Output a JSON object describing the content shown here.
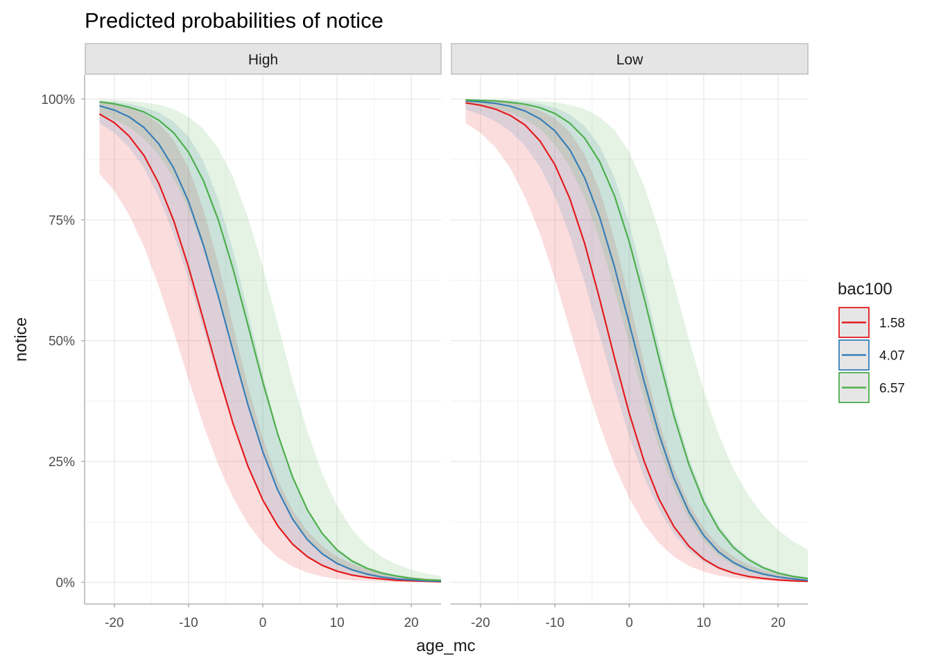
{
  "chart_data": {
    "type": "line",
    "title": "Predicted probabilities of notice",
    "xlabel": "age_mc",
    "ylabel": "notice",
    "xlim": [
      -24,
      24
    ],
    "ylim": [
      -0.045,
      1.05
    ],
    "x_ticks": [
      -20,
      -10,
      0,
      10,
      20
    ],
    "x_tick_labels": [
      "-20",
      "-10",
      "0",
      "10",
      "20"
    ],
    "y_ticks": [
      0,
      0.25,
      0.5,
      0.75,
      1
    ],
    "y_tick_labels": [
      "0%",
      "25%",
      "50%",
      "75%",
      "100%"
    ],
    "grid": true,
    "legend": {
      "title": "bac100",
      "position": "right",
      "entries": [
        "1.58",
        "4.07",
        "6.57"
      ]
    },
    "colors": {
      "1.58": "#e41a1c",
      "4.07": "#377eb8",
      "6.57": "#4daf4a"
    },
    "panels": [
      {
        "label": "High",
        "series": [
          {
            "name": "1.58",
            "x": [
              -22,
              -20,
              -18,
              -16,
              -14,
              -12,
              -10,
              -8,
              -6,
              -4,
              -2,
              0,
              2,
              4,
              6,
              8,
              10,
              12,
              14,
              16,
              18,
              20,
              22,
              24
            ],
            "y": [
              0.969,
              0.951,
              0.923,
              0.883,
              0.825,
              0.748,
              0.652,
              0.543,
              0.432,
              0.328,
              0.24,
              0.17,
              0.117,
              0.079,
              0.053,
              0.035,
              0.023,
              0.015,
              0.01,
              0.007,
              0.004,
              0.003,
              0.002,
              0.001
            ],
            "lower": [
              0.845,
              0.81,
              0.76,
              0.695,
              0.612,
              0.518,
              0.42,
              0.325,
              0.243,
              0.175,
              0.121,
              0.081,
              0.052,
              0.033,
              0.02,
              0.012,
              0.007,
              0.004,
              0.003,
              0.002,
              0.001,
              0.001,
              0.0005,
              0.0003
            ],
            "upper": [
              0.993,
              0.989,
              0.982,
              0.97,
              0.95,
              0.915,
              0.858,
              0.772,
              0.66,
              0.53,
              0.405,
              0.298,
              0.212,
              0.15,
              0.106,
              0.075,
              0.053,
              0.038,
              0.027,
              0.02,
              0.015,
              0.011,
              0.008,
              0.006
            ]
          },
          {
            "name": "4.07",
            "x": [
              -22,
              -20,
              -18,
              -16,
              -14,
              -12,
              -10,
              -8,
              -6,
              -4,
              -2,
              0,
              2,
              4,
              6,
              8,
              10,
              12,
              14,
              16,
              18,
              20,
              22,
              24
            ],
            "y": [
              0.986,
              0.977,
              0.963,
              0.941,
              0.907,
              0.857,
              0.788,
              0.698,
              0.592,
              0.478,
              0.367,
              0.27,
              0.191,
              0.131,
              0.088,
              0.059,
              0.039,
              0.026,
              0.017,
              0.011,
              0.007,
              0.005,
              0.003,
              0.002
            ],
            "lower": [
              0.95,
              0.93,
              0.9,
              0.857,
              0.797,
              0.72,
              0.628,
              0.524,
              0.421,
              0.326,
              0.242,
              0.174,
              0.12,
              0.081,
              0.053,
              0.034,
              0.022,
              0.014,
              0.009,
              0.006,
              0.004,
              0.002,
              0.0015,
              0.001
            ],
            "upper": [
              0.996,
              0.994,
              0.99,
              0.983,
              0.972,
              0.953,
              0.922,
              0.871,
              0.792,
              0.686,
              0.559,
              0.429,
              0.312,
              0.218,
              0.15,
              0.102,
              0.069,
              0.047,
              0.032,
              0.022,
              0.015,
              0.01,
              0.007,
              0.005
            ]
          },
          {
            "name": "6.57",
            "x": [
              -22,
              -20,
              -18,
              -16,
              -14,
              -12,
              -10,
              -8,
              -6,
              -4,
              -2,
              0,
              2,
              4,
              6,
              8,
              10,
              12,
              14,
              16,
              18,
              20,
              22,
              24
            ],
            "y": [
              0.994,
              0.99,
              0.983,
              0.973,
              0.956,
              0.93,
              0.89,
              0.831,
              0.75,
              0.648,
              0.532,
              0.414,
              0.307,
              0.218,
              0.15,
              0.101,
              0.067,
              0.044,
              0.029,
              0.019,
              0.013,
              0.008,
              0.005,
              0.004
            ],
            "lower": [
              0.97,
              0.958,
              0.942,
              0.918,
              0.884,
              0.836,
              0.772,
              0.689,
              0.589,
              0.48,
              0.373,
              0.276,
              0.195,
              0.133,
              0.088,
              0.057,
              0.036,
              0.023,
              0.014,
              0.009,
              0.006,
              0.004,
              0.002,
              0.0015
            ],
            "upper": [
              0.999,
              0.998,
              0.996,
              0.993,
              0.988,
              0.979,
              0.963,
              0.938,
              0.898,
              0.838,
              0.755,
              0.652,
              0.535,
              0.418,
              0.312,
              0.225,
              0.158,
              0.11,
              0.076,
              0.053,
              0.037,
              0.026,
              0.018,
              0.013
            ]
          }
        ]
      },
      {
        "label": "Low",
        "series": [
          {
            "name": "1.58",
            "x": [
              -22,
              -20,
              -18,
              -16,
              -14,
              -12,
              -10,
              -8,
              -6,
              -4,
              -2,
              0,
              2,
              4,
              6,
              8,
              10,
              12,
              14,
              16,
              18,
              20,
              22,
              24
            ],
            "y": [
              0.992,
              0.987,
              0.979,
              0.966,
              0.946,
              0.913,
              0.864,
              0.794,
              0.701,
              0.587,
              0.465,
              0.349,
              0.25,
              0.172,
              0.115,
              0.075,
              0.048,
              0.03,
              0.019,
              0.012,
              0.008,
              0.005,
              0.003,
              0.002
            ],
            "lower": [
              0.95,
              0.93,
              0.9,
              0.857,
              0.797,
              0.721,
              0.628,
              0.524,
              0.421,
              0.326,
              0.242,
              0.174,
              0.12,
              0.081,
              0.053,
              0.034,
              0.022,
              0.014,
              0.009,
              0.006,
              0.004,
              0.002,
              0.0015,
              0.001
            ],
            "upper": [
              0.998,
              0.997,
              0.995,
              0.992,
              0.986,
              0.976,
              0.96,
              0.932,
              0.885,
              0.812,
              0.71,
              0.585,
              0.452,
              0.332,
              0.235,
              0.163,
              0.112,
              0.077,
              0.053,
              0.036,
              0.025,
              0.017,
              0.012,
              0.008
            ]
          },
          {
            "name": "4.07",
            "x": [
              -22,
              -20,
              -18,
              -16,
              -14,
              -12,
              -10,
              -8,
              -6,
              -4,
              -2,
              0,
              2,
              4,
              6,
              8,
              10,
              12,
              14,
              16,
              18,
              20,
              22,
              24
            ],
            "y": [
              0.996,
              0.994,
              0.991,
              0.985,
              0.975,
              0.959,
              0.934,
              0.895,
              0.837,
              0.756,
              0.653,
              0.535,
              0.415,
              0.306,
              0.215,
              0.146,
              0.097,
              0.063,
              0.041,
              0.026,
              0.017,
              0.011,
              0.007,
              0.004
            ],
            "lower": [
              0.978,
              0.968,
              0.954,
              0.933,
              0.903,
              0.859,
              0.798,
              0.718,
              0.62,
              0.512,
              0.403,
              0.302,
              0.217,
              0.15,
              0.1,
              0.065,
              0.042,
              0.027,
              0.017,
              0.011,
              0.007,
              0.004,
              0.003,
              0.002
            ],
            "upper": [
              0.999,
              0.999,
              0.998,
              0.997,
              0.994,
              0.99,
              0.982,
              0.968,
              0.944,
              0.903,
              0.838,
              0.742,
              0.62,
              0.488,
              0.362,
              0.257,
              0.176,
              0.118,
              0.078,
              0.052,
              0.034,
              0.022,
              0.015,
              0.01
            ]
          },
          {
            "name": "6.57",
            "x": [
              -22,
              -20,
              -18,
              -16,
              -14,
              -12,
              -10,
              -8,
              -6,
              -4,
              -2,
              0,
              2,
              4,
              6,
              8,
              10,
              12,
              14,
              16,
              18,
              20,
              22,
              24
            ],
            "y": [
              0.998,
              0.997,
              0.996,
              0.993,
              0.989,
              0.982,
              0.97,
              0.95,
              0.919,
              0.871,
              0.8,
              0.704,
              0.588,
              0.463,
              0.344,
              0.244,
              0.166,
              0.11,
              0.072,
              0.047,
              0.03,
              0.019,
              0.012,
              0.008
            ],
            "lower": [
              0.99,
              0.986,
              0.98,
              0.972,
              0.958,
              0.938,
              0.906,
              0.86,
              0.795,
              0.71,
              0.606,
              0.492,
              0.378,
              0.277,
              0.194,
              0.131,
              0.086,
              0.055,
              0.035,
              0.022,
              0.014,
              0.009,
              0.005,
              0.003
            ],
            "upper": [
              1.0,
              0.999,
              0.999,
              0.999,
              0.998,
              0.996,
              0.993,
              0.988,
              0.979,
              0.963,
              0.936,
              0.89,
              0.82,
              0.727,
              0.618,
              0.503,
              0.397,
              0.306,
              0.234,
              0.18,
              0.139,
              0.108,
              0.085,
              0.067
            ]
          }
        ]
      }
    ]
  }
}
